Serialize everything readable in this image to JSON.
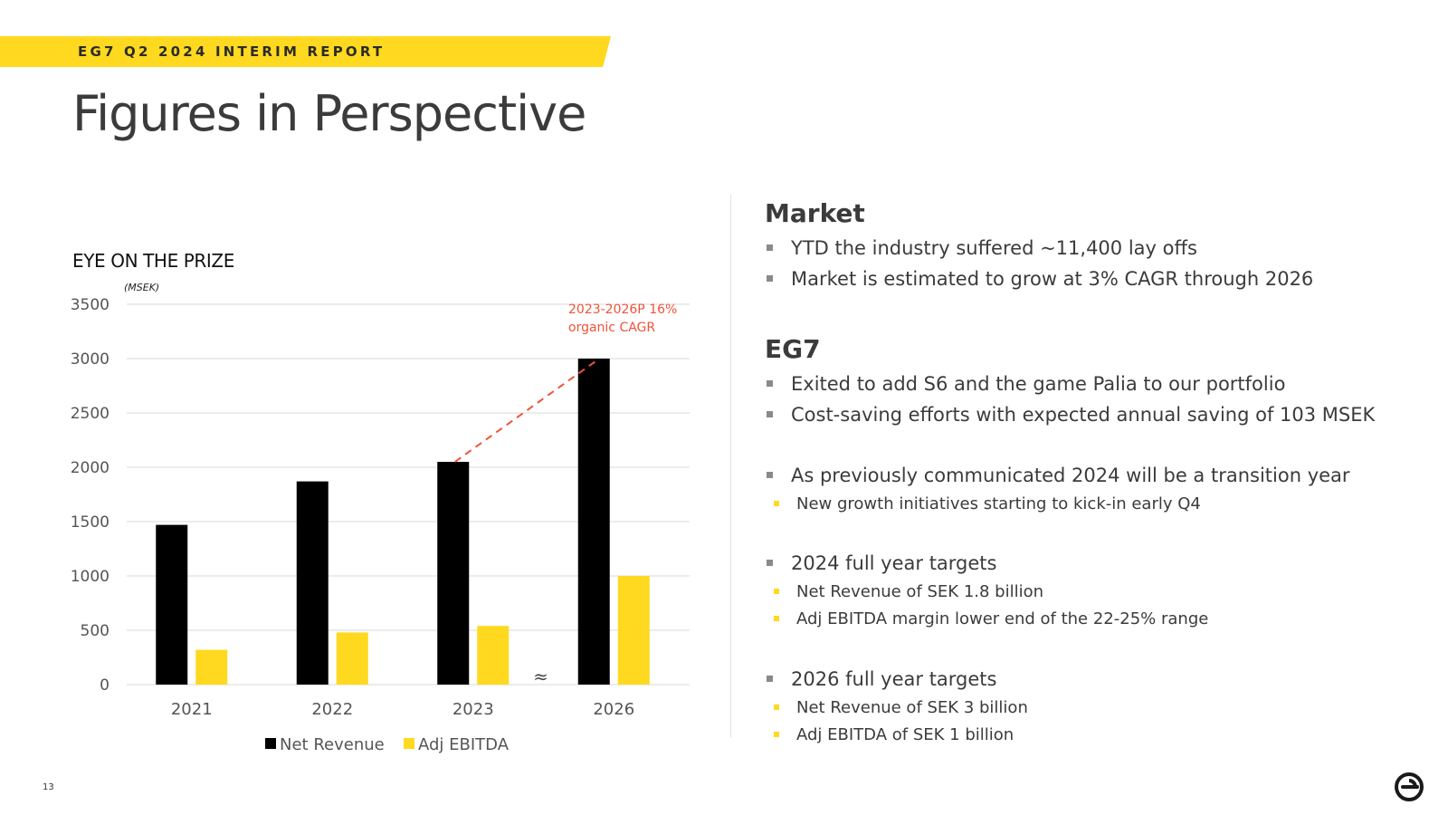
{
  "header": {
    "banner": "EG7 Q2 2024 INTERIM REPORT",
    "title": "Figures in Perspective"
  },
  "chart_heading": "EYE ON THE PRIZE",
  "chart_unit": "(MSEK)",
  "chart_data": {
    "type": "bar",
    "categories": [
      "2021",
      "2022",
      "2023",
      "2026"
    ],
    "series": [
      {
        "name": "Net Revenue",
        "values": [
          1470,
          1870,
          2050,
          3000
        ],
        "color": "#000000"
      },
      {
        "name": "Adj EBITDA",
        "values": [
          320,
          480,
          540,
          1000
        ],
        "color": "#FFD91F"
      }
    ],
    "ylim": [
      0,
      3500
    ],
    "yticks": [
      "0",
      "500",
      "1000",
      "1500",
      "2000",
      "2500",
      "3000",
      "3500"
    ],
    "axis_break_symbol": "≈",
    "grid": true,
    "legend_position": "bottom",
    "annotation": {
      "lines": [
        "2023-2026P 16%",
        "organic CAGR"
      ],
      "from": {
        "category": "2023",
        "value": 2050
      },
      "to": {
        "category": "2026",
        "value": 3000
      },
      "color": "#F0533A"
    }
  },
  "market": {
    "title": "Market",
    "bullets": [
      "YTD the industry suffered ~11,400 lay offs",
      "Market is estimated to grow at 3% CAGR through 2026"
    ]
  },
  "eg7": {
    "title": "EG7",
    "bullets": [
      "Exited to add S6 and the game Palia to our portfolio",
      "Cost-saving efforts with expected annual saving of 103 MSEK"
    ],
    "transition": {
      "text": "As previously communicated 2024 will be a transition year",
      "sub": [
        "New growth initiatives starting to kick-in early Q4"
      ]
    },
    "targets_2024": {
      "text": "2024 full year targets",
      "sub": [
        "Net Revenue of SEK 1.8 billion",
        "Adj EBITDA margin lower end of the 22-25% range"
      ]
    },
    "targets_2026": {
      "text": "2026 full year targets",
      "sub": [
        "Net Revenue of SEK 3 billion",
        "Adj EBITDA of SEK 1 billion"
      ]
    }
  },
  "page_number": "13"
}
